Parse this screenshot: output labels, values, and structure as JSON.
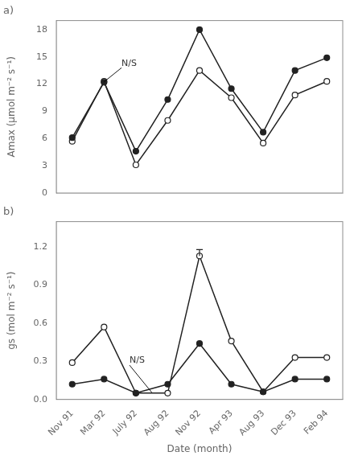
{
  "chart_data": [
    {
      "type": "line",
      "title": "a)",
      "categories": [
        "Nov 91",
        "Mar 92",
        "July 92",
        "Aug 92",
        "Nov 92",
        "Apr 93",
        "Aug 93",
        "Dec 93",
        "Feb 94"
      ],
      "ylabel": "Amax (μmol m⁻² s⁻¹)",
      "ylim": [
        0,
        19
      ],
      "yticks": [
        0,
        3,
        6,
        9,
        12,
        15,
        18
      ],
      "grid": false,
      "tick_labels": "y",
      "series": [
        {
          "color": "#222222",
          "marker": "filled_circle",
          "values": [
            6.1,
            12.2,
            4.6,
            10.3,
            18.0,
            11.5,
            6.7,
            13.5,
            14.9
          ]
        },
        {
          "color": "#222222",
          "marker": "open_circle",
          "values": [
            5.7,
            12.3,
            3.1,
            8.0,
            13.5,
            10.5,
            5.5,
            10.8,
            12.3
          ]
        }
      ],
      "annotations": [
        {
          "text": "N/S",
          "xy": [
            1,
            12.25
          ],
          "xytext": [
            1.55,
            13.8
          ]
        }
      ]
    },
    {
      "type": "line",
      "title": "b)",
      "categories": [
        "Nov 91",
        "Mar 92",
        "July 92",
        "Aug 92",
        "Nov 92",
        "Apr 93",
        "Aug 93",
        "Dec 93",
        "Feb 94"
      ],
      "xlabel": "Date (month)",
      "ylabel": "gs (mol m⁻² s⁻¹)",
      "ylim": [
        0,
        1.4
      ],
      "yticks": [
        {
          "value": 0,
          "label": "0.0"
        },
        0.3,
        0.6,
        0.9,
        1.2
      ],
      "grid": false,
      "series": [
        {
          "color": "#222222",
          "marker": "filled_circle",
          "values": [
            0.12,
            0.16,
            0.05,
            0.12,
            0.44,
            0.12,
            0.06,
            0.16,
            0.16
          ]
        },
        {
          "color": "#222222",
          "marker": "open_circle",
          "values": [
            0.29,
            0.57,
            0.05,
            0.05,
            1.13,
            0.46,
            0.06,
            0.33,
            0.33
          ],
          "yerr_upper": [
            null,
            null,
            null,
            null,
            0.05,
            null,
            null,
            null,
            null
          ]
        }
      ],
      "annotations": [
        {
          "text": "N/S",
          "xy": [
            2.5,
            0.055
          ],
          "xytext": [
            1.8,
            0.27
          ]
        }
      ]
    }
  ]
}
